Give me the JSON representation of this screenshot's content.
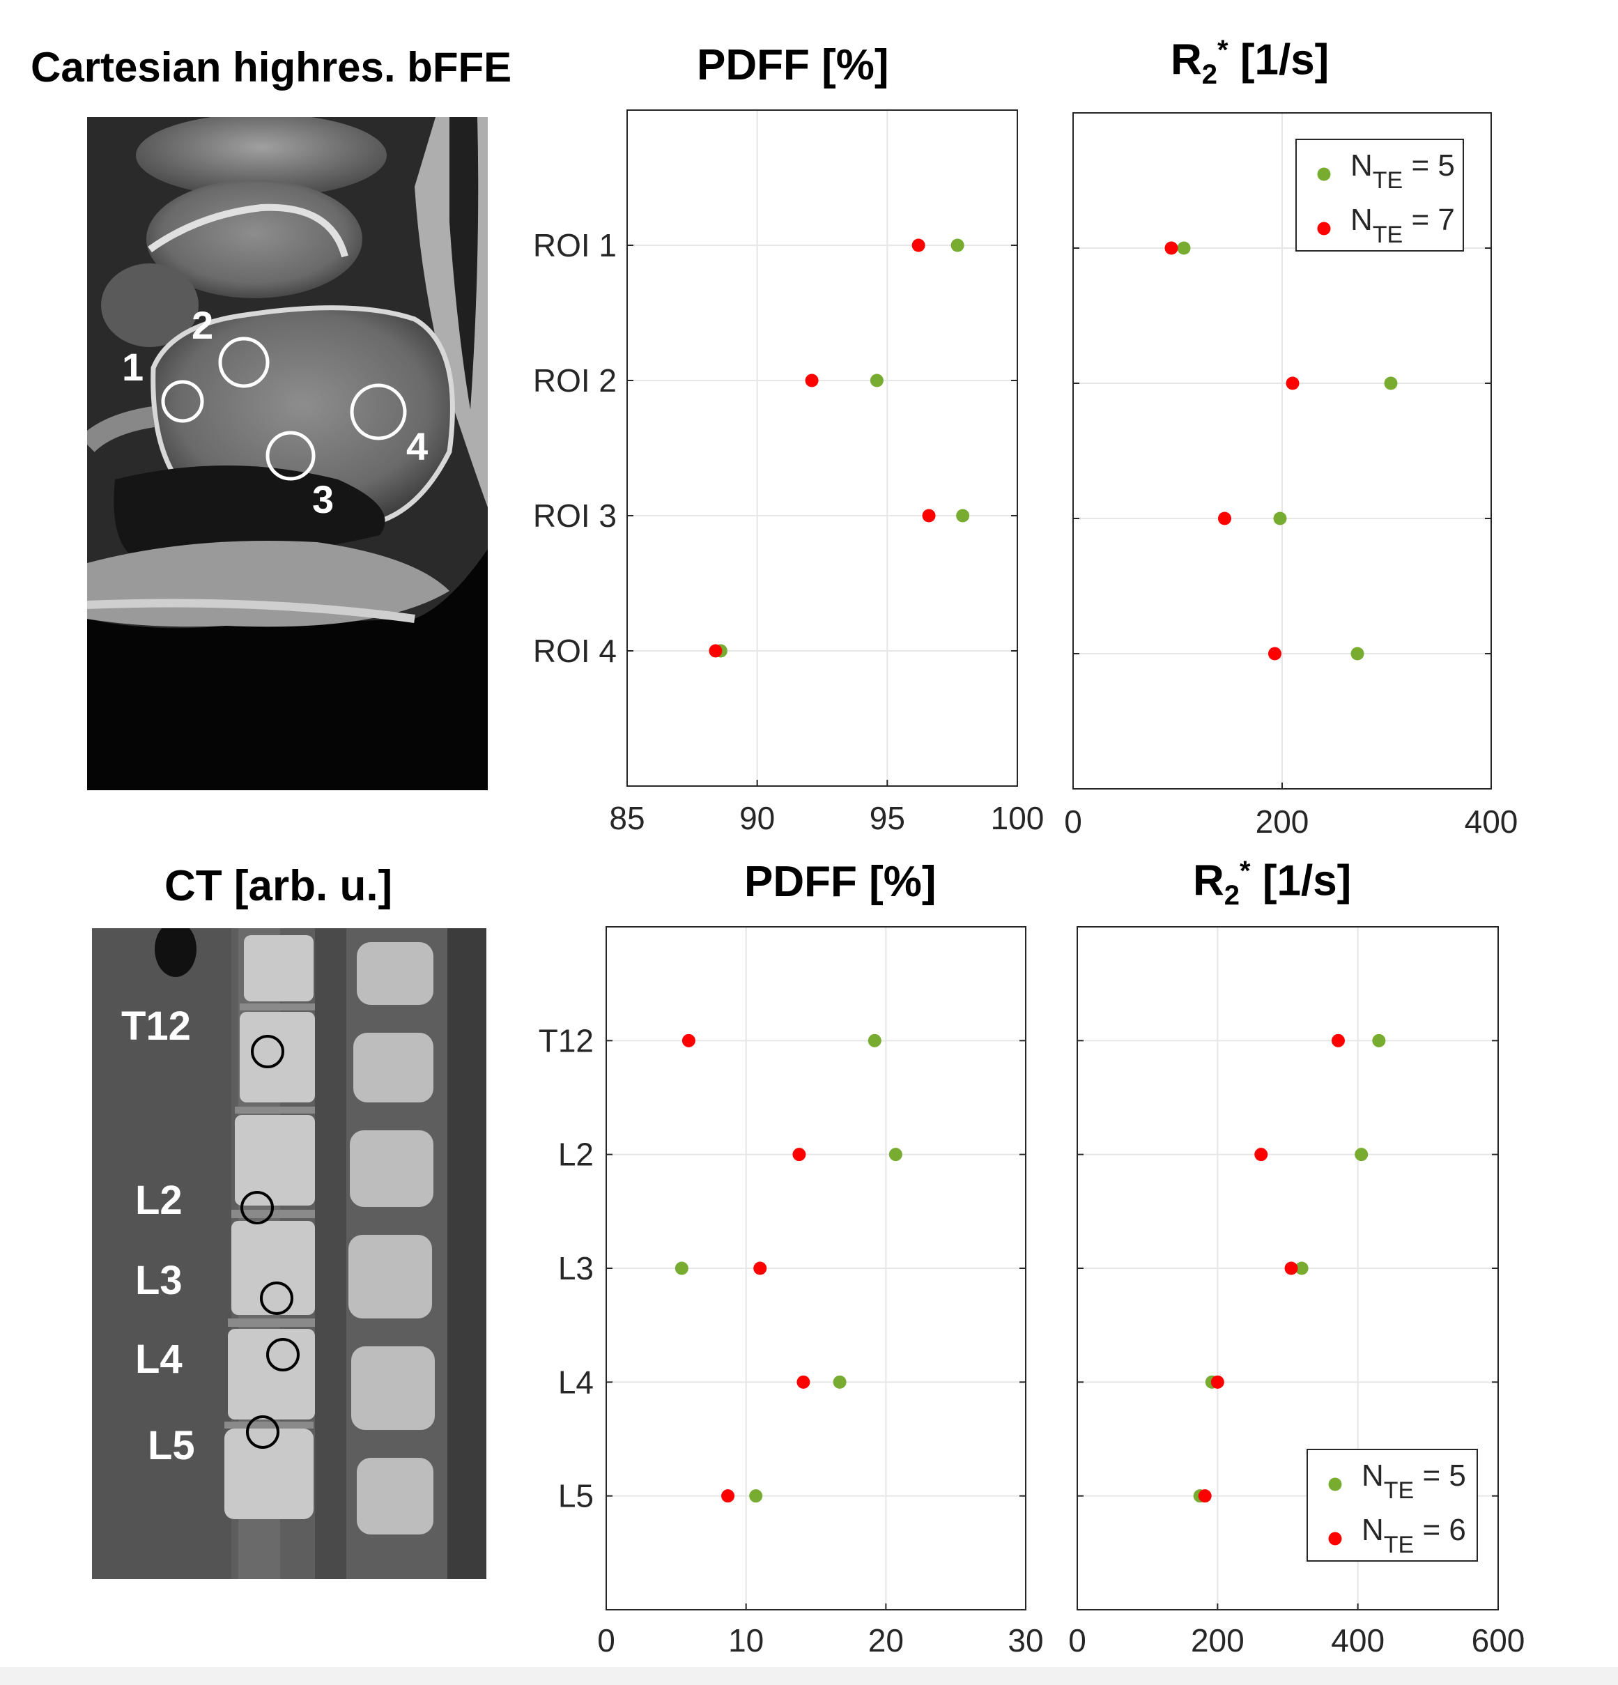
{
  "top": {
    "image_title": "Cartesian highres. bFFE",
    "roi_labels": [
      "1",
      "2",
      "3",
      "4"
    ],
    "pdff_title": "PDFF [%]",
    "r2_title_base": "R",
    "r2_title_sub": "2",
    "r2_title_sup": "*",
    "r2_title_unit": " [1/s]"
  },
  "bottom": {
    "image_title": "CT [arb. u.]",
    "vert_labels": [
      "T12",
      "L2",
      "L3",
      "L4",
      "L5"
    ],
    "pdff_title": "PDFF [%]",
    "r2_title_base": "R",
    "r2_title_sub": "2",
    "r2_title_sup": "*",
    "r2_title_unit": " [1/s]"
  },
  "colors": {
    "green": "#77ac30",
    "red": "#ff0000",
    "grid": "#e6e6e6",
    "axis": "#262626"
  },
  "chart_data": [
    {
      "type": "scatter",
      "title": "PDFF [%]",
      "categories": [
        "ROI 1",
        "ROI 2",
        "ROI 3",
        "ROI 4"
      ],
      "xlim": [
        85,
        100
      ],
      "xticks": [
        "85",
        "90",
        "95",
        "100"
      ],
      "grid": true,
      "series": [
        {
          "name": "N_TE = 5",
          "color": "#77ac30",
          "values": [
            97.7,
            94.6,
            97.9,
            88.6
          ]
        },
        {
          "name": "N_TE = 7",
          "color": "#ff0000",
          "values": [
            96.2,
            92.1,
            96.6,
            88.4
          ]
        }
      ]
    },
    {
      "type": "scatter",
      "title": "R2* [1/s]",
      "categories": [
        "ROI 1",
        "ROI 2",
        "ROI 3",
        "ROI 4"
      ],
      "xlim": [
        0,
        400
      ],
      "xticks": [
        "0",
        "200",
        "400"
      ],
      "grid": true,
      "legend": {
        "placement": "top-right",
        "entries": [
          {
            "base": "N",
            "sub": "TE",
            "value": " = 5",
            "color": "#77ac30"
          },
          {
            "base": "N",
            "sub": "TE",
            "value": " = 7",
            "color": "#ff0000"
          }
        ]
      },
      "series": [
        {
          "name": "N_TE = 5",
          "color": "#77ac30",
          "values": [
            106,
            304,
            198,
            272
          ]
        },
        {
          "name": "N_TE = 7",
          "color": "#ff0000",
          "values": [
            94,
            210,
            145,
            193
          ]
        }
      ]
    },
    {
      "type": "scatter",
      "title": "PDFF [%]",
      "categories": [
        "T12",
        "L2",
        "L3",
        "L4",
        "L5"
      ],
      "xlim": [
        0,
        30
      ],
      "xticks": [
        "0",
        "10",
        "20",
        "30"
      ],
      "grid": true,
      "series": [
        {
          "name": "N_TE = 5",
          "color": "#77ac30",
          "values": [
            19.2,
            20.7,
            5.4,
            16.7,
            10.7
          ]
        },
        {
          "name": "N_TE = 6",
          "color": "#ff0000",
          "values": [
            5.9,
            13.8,
            11.0,
            14.1,
            8.7
          ]
        }
      ]
    },
    {
      "type": "scatter",
      "title": "R2* [1/s]",
      "categories": [
        "T12",
        "L2",
        "L3",
        "L4",
        "L5"
      ],
      "xlim": [
        0,
        600
      ],
      "xticks": [
        "0",
        "200",
        "400",
        "600"
      ],
      "grid": true,
      "legend": {
        "placement": "bottom-right",
        "entries": [
          {
            "base": "N",
            "sub": "TE",
            "value": " = 5",
            "color": "#77ac30"
          },
          {
            "base": "N",
            "sub": "TE",
            "value": " = 6",
            "color": "#ff0000"
          }
        ]
      },
      "series": [
        {
          "name": "N_TE = 5",
          "color": "#77ac30",
          "values": [
            430,
            405,
            320,
            192,
            175
          ]
        },
        {
          "name": "N_TE = 6",
          "color": "#ff0000",
          "values": [
            372,
            262,
            305,
            200,
            182
          ]
        }
      ]
    }
  ]
}
